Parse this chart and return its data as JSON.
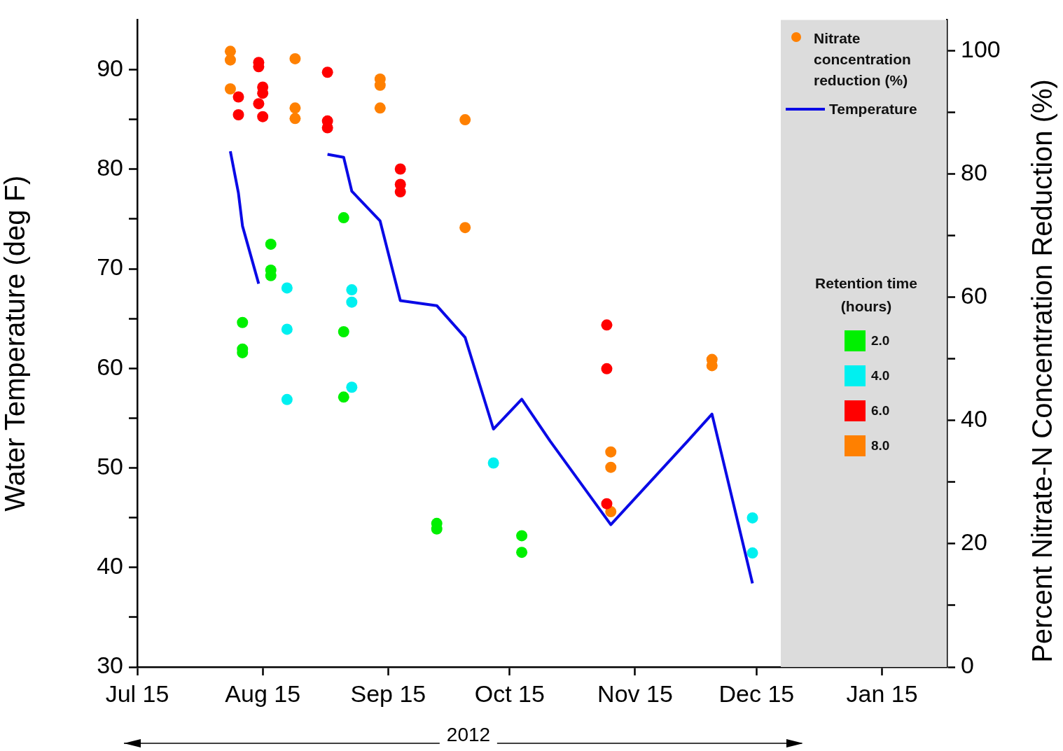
{
  "chart_data": {
    "type": "scatter",
    "ylabel": "Water Temperature (deg F)",
    "y2label": "Percent Nitrate-N Concentration Reduction (%)",
    "legend_title": "Retention time (hours)",
    "annotations": [
      "Nitrate concentration reduction (%)",
      "2012"
    ],
    "xlim": [
      "2012-07-15",
      "2013-01-31"
    ],
    "xticks": [
      {
        "value": "2012-07-15",
        "label": "Jul 15"
      },
      {
        "value": "2012-08-15",
        "label": "Aug 15"
      },
      {
        "value": "2012-09-15",
        "label": "Sep 15"
      },
      {
        "value": "2012-10-15",
        "label": "Oct 15"
      },
      {
        "value": "2012-11-15",
        "label": "Nov 15"
      },
      {
        "value": "2012-12-15",
        "label": "Dec 15"
      },
      {
        "value": "2013-01-15",
        "label": "Jan 15"
      }
    ],
    "ylim": [
      30,
      95
    ],
    "yticks": [
      30,
      {
        "value": 35,
        "label": null
      },
      40,
      {
        "value": 45,
        "label": null
      },
      50,
      {
        "value": 55,
        "label": null
      },
      60,
      {
        "value": 65,
        "label": null
      },
      70,
      {
        "value": 75,
        "label": null
      },
      80,
      {
        "value": 85,
        "label": null
      },
      90
    ],
    "y2lim": [
      0,
      105
    ],
    "y2ticks": [
      0,
      {
        "value": 10,
        "label": null
      },
      20,
      {
        "value": 30,
        "label": null
      },
      40,
      {
        "value": 50,
        "label": null
      },
      60,
      {
        "value": 70,
        "label": null
      },
      80,
      {
        "value": 90,
        "label": null
      },
      100
    ],
    "grid": false,
    "legend": "top right",
    "marker": "circle",
    "bands": [
      {
        "axis": "x",
        "from": "2012-12-21",
        "to": "2013-01-31",
        "color": "#dcdcdc"
      }
    ],
    "series": [
      {
        "name": "Temperature",
        "type": "line",
        "marker": "none",
        "color": "#0a0ae6",
        "x": [
          "2012-08-07",
          "2012-08-09",
          "2012-08-10",
          "2012-08-14",
          "2012-08-22",
          "2012-08-31",
          "2012-09-04",
          "2012-09-06",
          "2012-09-13",
          "2012-09-18",
          "2012-09-27",
          "2012-10-04",
          "2012-10-11",
          "2012-10-18",
          "2012-10-25",
          "2012-11-09",
          "2012-11-28",
          "2012-12-04",
          "2012-12-14"
        ],
        "values": [
          81.8,
          77.6,
          74.3,
          68.5,
          null,
          81.5,
          81.2,
          77.8,
          74.8,
          66.8,
          66.3,
          63.1,
          53.9,
          56.9,
          52.7,
          44.3,
          52.7,
          55.4,
          38.4
        ]
      },
      {
        "name": "2.0",
        "axis": "y2",
        "color": "#00f000",
        "x": [
          "2012-08-10",
          "2012-08-10",
          "2012-08-10",
          "2012-08-17",
          "2012-08-17",
          "2012-08-17",
          "2012-09-04",
          "2012-09-04",
          "2012-09-04",
          "2012-09-27",
          "2012-09-27",
          "2012-10-18",
          "2012-10-18"
        ],
        "values": [
          55.9,
          51.6,
          51.0,
          68.6,
          64.4,
          63.5,
          72.9,
          54.4,
          43.8,
          23.3,
          22.4,
          21.3,
          18.6
        ]
      },
      {
        "name": "4.0",
        "axis": "y2",
        "color": "#00f0f0",
        "x": [
          "2012-08-21",
          "2012-08-21",
          "2012-08-21",
          "2012-09-06",
          "2012-09-06",
          "2012-09-06",
          "2012-10-11",
          "2012-12-14",
          "2012-12-14"
        ],
        "values": [
          61.5,
          54.8,
          43.4,
          61.2,
          59.2,
          45.4,
          33.1,
          24.2,
          18.5
        ]
      },
      {
        "name": "6.0",
        "axis": "y2",
        "color": "#ff0000",
        "x": [
          "2012-08-09",
          "2012-08-09",
          "2012-08-14",
          "2012-08-14",
          "2012-08-14",
          "2012-08-15",
          "2012-08-15",
          "2012-08-15",
          "2012-08-31",
          "2012-08-31",
          "2012-08-31",
          "2012-09-18",
          "2012-09-18",
          "2012-09-18",
          "2012-11-08",
          "2012-11-08",
          "2012-11-08"
        ],
        "values": [
          92.5,
          89.6,
          98.1,
          97.4,
          91.4,
          94.1,
          93.1,
          89.3,
          96.5,
          88.6,
          87.5,
          80.8,
          78.3,
          77.1,
          55.5,
          48.4,
          26.5
        ]
      },
      {
        "name": "8.0",
        "axis": "y2",
        "color": "#ff8000",
        "x": [
          "2012-08-07",
          "2012-08-07",
          "2012-08-07",
          "2012-08-23",
          "2012-08-23",
          "2012-08-23",
          "2012-09-13",
          "2012-09-13",
          "2012-09-13",
          "2012-10-04",
          "2012-10-04",
          "2012-11-09",
          "2012-11-09",
          "2012-11-09",
          "2012-12-04",
          "2012-12-04"
        ],
        "values": [
          99.9,
          98.5,
          93.8,
          98.7,
          90.7,
          89.0,
          95.4,
          94.4,
          90.7,
          88.8,
          71.3,
          34.9,
          32.4,
          25.2,
          49.9,
          48.9
        ]
      }
    ]
  }
}
